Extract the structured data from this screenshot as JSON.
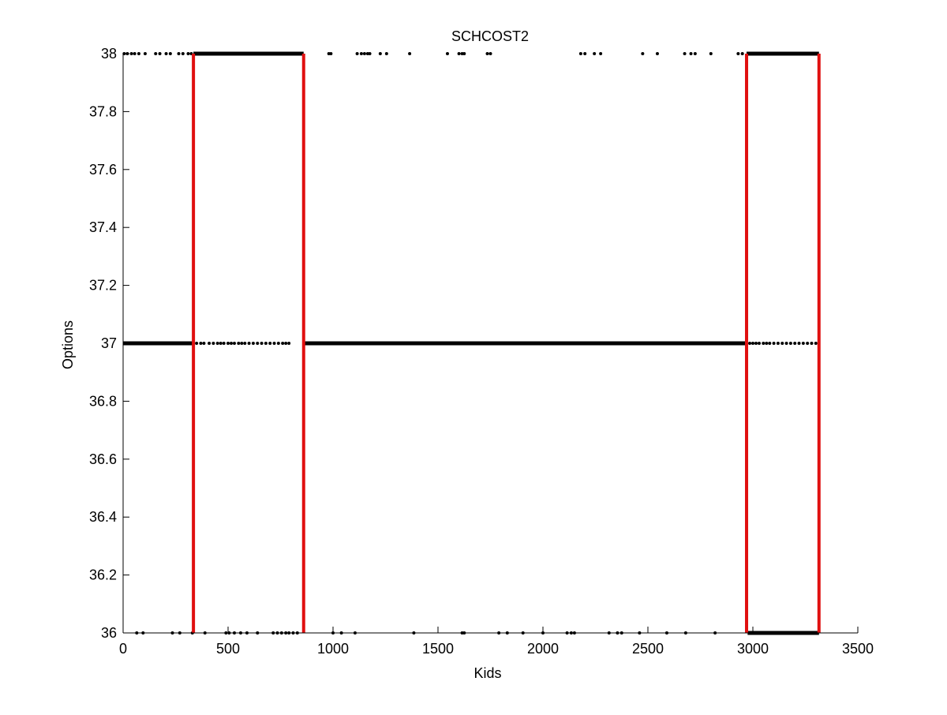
{
  "chart_data": {
    "type": "scatter",
    "title": "SCHCOST2",
    "xlabel": "Kids",
    "ylabel": "Options",
    "xlim": [
      0,
      3500
    ],
    "ylim": [
      36,
      38
    ],
    "x_ticks": [
      0,
      500,
      1000,
      1500,
      2000,
      2500,
      3000,
      3500
    ],
    "x_tick_labels": [
      "0",
      "500",
      "1000",
      "1500",
      "2000",
      "2500",
      "3000",
      "3500"
    ],
    "y_ticks": [
      36,
      36.2,
      36.4,
      36.6,
      36.8,
      37,
      37.2,
      37.4,
      37.6,
      37.8,
      38
    ],
    "y_tick_labels": [
      "36",
      "36.2",
      "36.4",
      "36.6",
      "36.8",
      "37",
      "37.2",
      "37.4",
      "37.6",
      "37.8",
      "38"
    ],
    "grid": false,
    "marker_color": "#000000",
    "series": [
      {
        "y": 38,
        "dense_ranges": [
          [
            335,
            860
          ],
          [
            2970,
            3315
          ]
        ],
        "scattered_x": [
          5,
          20,
          40,
          55,
          75,
          105,
          155,
          175,
          205,
          225,
          265,
          285,
          310,
          325,
          980,
          990,
          1115,
          1135,
          1150,
          1165,
          1175,
          1225,
          1255,
          1365,
          1545,
          1600,
          1615,
          1625,
          1735,
          1750,
          2180,
          2200,
          2245,
          2275,
          2475,
          2545,
          2675,
          2705,
          2725,
          2800,
          2930,
          2950
        ]
      },
      {
        "y": 37,
        "dense_ranges": [
          [
            0,
            340
          ],
          [
            860,
            2975
          ]
        ],
        "scattered_x": [
          350,
          370,
          385,
          410,
          430,
          450,
          465,
          480,
          500,
          515,
          530,
          550,
          565,
          580,
          600,
          620,
          640,
          660,
          680,
          700,
          720,
          740,
          760,
          775,
          790,
          2985,
          3000,
          3015,
          3030,
          3050,
          3065,
          3080,
          3100,
          3120,
          3140,
          3160,
          3180,
          3200,
          3220,
          3240,
          3260,
          3280,
          3300
        ]
      },
      {
        "y": 36,
        "dense_ranges": [
          [
            2975,
            3315
          ]
        ],
        "scattered_x": [
          65,
          95,
          235,
          270,
          330,
          390,
          490,
          505,
          530,
          560,
          590,
          640,
          715,
          735,
          755,
          775,
          790,
          810,
          830,
          1000,
          1040,
          1105,
          1385,
          1615,
          1625,
          1790,
          1830,
          1905,
          2000,
          2115,
          2135,
          2150,
          2315,
          2355,
          2375,
          2460,
          2590,
          2680,
          2820
        ]
      }
    ],
    "vertical_lines": {
      "color": "#e01010",
      "x": [
        335,
        860,
        2970,
        3315
      ],
      "y_range": [
        36,
        38
      ]
    }
  }
}
